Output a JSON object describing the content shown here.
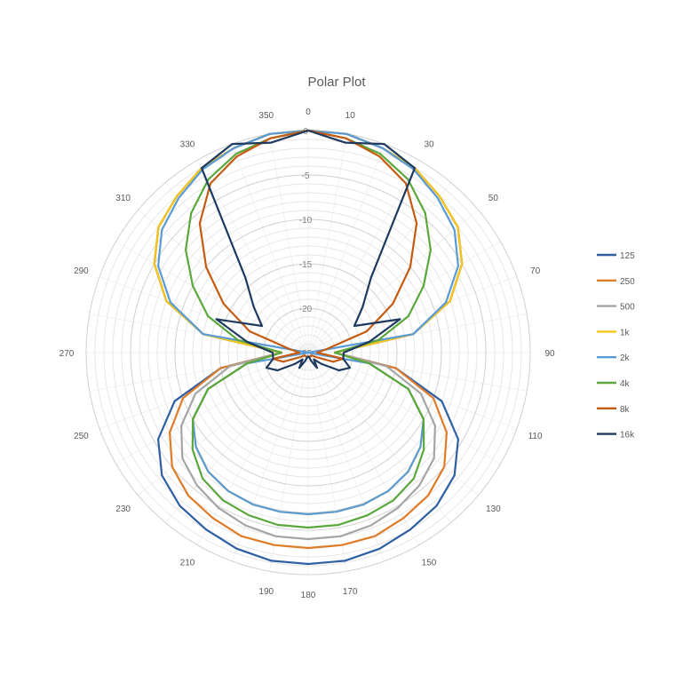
{
  "chart_data": {
    "type": "radar",
    "title": "Polar Plot",
    "angles": [
      0,
      10,
      20,
      30,
      40,
      50,
      60,
      70,
      80,
      90,
      100,
      110,
      120,
      130,
      140,
      150,
      160,
      170,
      180,
      190,
      200,
      210,
      220,
      230,
      240,
      250,
      260,
      270,
      280,
      290,
      300,
      310,
      320,
      330,
      340,
      350
    ],
    "angle_labels": [
      "0",
      "10",
      "30",
      "50",
      "70",
      "90",
      "110",
      "130",
      "150",
      "170",
      "180",
      "190",
      "210",
      "230",
      "250",
      "270",
      "290",
      "310",
      "330",
      "350"
    ],
    "rlim": [
      -25,
      0
    ],
    "r_ticks": [
      0,
      -5,
      -10,
      -15,
      -20,
      -25
    ],
    "r_tick_labels": [
      "0",
      "-5",
      "-10",
      "-15",
      "-20",
      "-25"
    ],
    "grid": true,
    "legend": "right",
    "series": [
      {
        "name": "125",
        "color": "#2e5fa3",
        "values": [
          0,
          0,
          -0.5,
          -1,
          -2,
          -3,
          -5,
          -8,
          -13,
          -22,
          -15,
          -9,
          -5.5,
          -3.5,
          -2.5,
          -2,
          -1.5,
          -1.2,
          -1.2,
          -1.2,
          -1.5,
          -2,
          -2.5,
          -3.5,
          -5.5,
          -9,
          -15,
          -22,
          -13,
          -8,
          -5,
          -3,
          -2,
          -1,
          -0.5,
          0
        ]
      },
      {
        "name": "250",
        "color": "#e07b27",
        "values": [
          0,
          0,
          -0.5,
          -1,
          -2,
          -3,
          -5,
          -8,
          -13,
          -22,
          -15,
          -10,
          -7,
          -5,
          -4,
          -3.5,
          -3,
          -3,
          -3,
          -3,
          -3,
          -3.5,
          -4,
          -5,
          -7,
          -10,
          -15,
          -22,
          -13,
          -8,
          -5,
          -3,
          -2,
          -1,
          -0.5,
          0
        ]
      },
      {
        "name": "500",
        "color": "#a5a5a5",
        "values": [
          0,
          0,
          -0.5,
          -1,
          -2,
          -3,
          -5,
          -8,
          -13,
          -22,
          -16,
          -11.5,
          -8.5,
          -6.5,
          -5.5,
          -4.8,
          -4.3,
          -4,
          -4,
          -4,
          -4.3,
          -4.8,
          -5.5,
          -6.5,
          -8.5,
          -11.5,
          -16,
          -22,
          -13,
          -8,
          -5,
          -3,
          -2,
          -1,
          -0.5,
          0
        ]
      },
      {
        "name": "1k",
        "color": "#f5c518",
        "values": [
          0,
          0,
          -0.5,
          -1,
          -2,
          -3,
          -5,
          -8,
          -13,
          -22,
          -18,
          -13,
          -10,
          -8.5,
          -7.5,
          -7,
          -6.8,
          -6.8,
          -6.8,
          -6.8,
          -6.8,
          -7,
          -7.5,
          -8.5,
          -10,
          -13,
          -18,
          -22,
          -13,
          -8,
          -5,
          -3,
          -2,
          -1,
          -0.5,
          0
        ]
      },
      {
        "name": "2k",
        "color": "#5b9bd5",
        "values": [
          0,
          0,
          -0.5,
          -1.2,
          -2.3,
          -3.5,
          -5.5,
          -8.5,
          -13,
          -25,
          -18,
          -13,
          -10,
          -8.5,
          -7.5,
          -7,
          -6.8,
          -6.8,
          -6.8,
          -6.8,
          -6.8,
          -7,
          -7.5,
          -8.5,
          -10,
          -13,
          -18,
          -25,
          -13,
          -8.5,
          -5.5,
          -3.5,
          -2.3,
          -1.2,
          -0.5,
          0
        ]
      },
      {
        "name": "4k",
        "color": "#5aa83c",
        "values": [
          0,
          -0.5,
          -1.2,
          -2.5,
          -4.5,
          -7,
          -10,
          -13,
          -17,
          -22,
          -18,
          -13,
          -10,
          -8,
          -6.5,
          -5.8,
          -5.5,
          -5.3,
          -5.3,
          -5.3,
          -5.5,
          -5.8,
          -6.5,
          -8,
          -10,
          -13,
          -18,
          -22,
          -17,
          -13,
          -10,
          -7,
          -4.5,
          -2.5,
          -1.2,
          -0.5
        ]
      },
      {
        "name": "8k",
        "color": "#c55a11",
        "values": [
          0,
          -0.5,
          -1.5,
          -3,
          -6,
          -10,
          -14,
          -18,
          -23,
          -24,
          -21,
          -22,
          -24,
          -24.5,
          -24.5,
          -24.5,
          -24.5,
          -24.5,
          -24.5,
          -24.5,
          -24.5,
          -24.5,
          -24.5,
          -24.5,
          -24,
          -22,
          -21,
          -24,
          -23,
          -18,
          -14,
          -10,
          -6,
          -3,
          -1.5,
          -0.5
        ]
      },
      {
        "name": "16k",
        "color": "#1f3a5f",
        "values": [
          0,
          -1,
          2,
          -1,
          -14,
          -17,
          -19,
          -14,
          -18,
          -21,
          -21,
          -20,
          -21,
          -23,
          -24,
          -23,
          -24,
          -24.5,
          -24.5,
          -24.5,
          -24,
          -23,
          -24,
          -23,
          -21,
          -20,
          -21,
          -21,
          -18,
          -14,
          -19,
          -17,
          -14,
          -1,
          2,
          -1
        ]
      }
    ]
  }
}
